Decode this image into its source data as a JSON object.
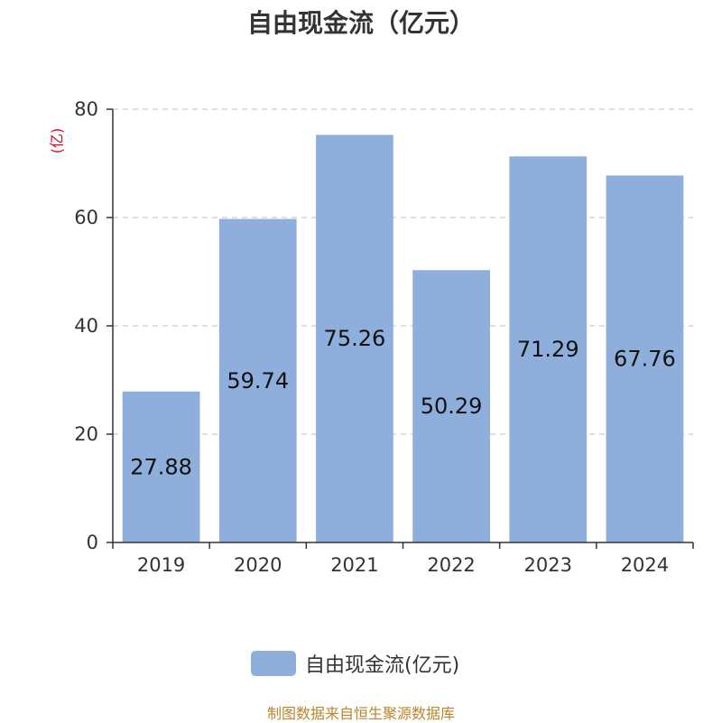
{
  "chart_data": {
    "type": "bar",
    "title": "自由现金流（亿元）",
    "ylabel": "(亿)",
    "xlabel": "",
    "categories": [
      "2019",
      "2020",
      "2021",
      "2022",
      "2023",
      "2024"
    ],
    "series": [
      {
        "name": "自由现金流(亿元)",
        "values": [
          27.88,
          59.74,
          75.26,
          50.29,
          71.29,
          67.76
        ]
      }
    ],
    "ylim": [
      0,
      80
    ],
    "yticks": [
      0,
      20,
      40,
      60,
      80
    ],
    "grid": true,
    "legend": "bottom-center"
  },
  "footer": "制图数据来自恒生聚源数据库",
  "colors": {
    "bar": "#8eaedb",
    "axis": "#333333",
    "grid": "#cccccc",
    "ylabel": "#e0002a",
    "footer": "#b8862b"
  }
}
